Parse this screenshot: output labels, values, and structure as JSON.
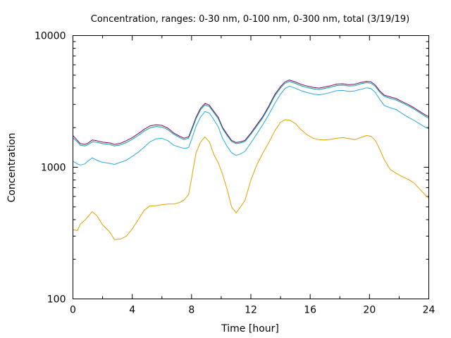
{
  "chart_data": {
    "type": "line",
    "title": "Concentration, ranges: 0-30 nm, 0-100 nm, 0-300 nm, total (3/19/19)",
    "xlabel": "Time [hour]",
    "ylabel": "Concentration",
    "xlim": [
      0,
      24
    ],
    "ylim": [
      100,
      10000
    ],
    "yscale": "log",
    "grid": false,
    "legend": "none",
    "x_ticks": [
      0,
      4,
      8,
      12,
      16,
      20,
      24
    ],
    "x_tick_labels": [
      "0",
      "4",
      "8",
      "12",
      "16",
      "20",
      "24"
    ],
    "y_ticks": [
      100,
      1000,
      10000
    ],
    "y_tick_labels": [
      "100",
      "1000",
      "10000"
    ],
    "x": [
      0,
      0.3,
      0.5,
      0.8,
      1.0,
      1.3,
      1.6,
      2.0,
      2.5,
      2.8,
      3.2,
      3.6,
      4.0,
      4.4,
      4.8,
      5.2,
      5.6,
      6.0,
      6.4,
      6.8,
      7.2,
      7.5,
      7.8,
      8.0,
      8.3,
      8.6,
      8.9,
      9.2,
      9.5,
      9.8,
      10.1,
      10.4,
      10.7,
      11.0,
      11.3,
      11.6,
      12.0,
      12.4,
      12.8,
      13.2,
      13.6,
      14.0,
      14.3,
      14.6,
      15.0,
      15.4,
      15.8,
      16.2,
      16.6,
      17.0,
      17.4,
      17.8,
      18.2,
      18.6,
      19.0,
      19.4,
      19.8,
      20.1,
      20.4,
      20.7,
      21.0,
      21.4,
      21.8,
      22.2,
      22.6,
      23.0,
      23.4,
      23.8,
      24.0
    ],
    "series": [
      {
        "color": "#800080",
        "values": [
          1740,
          1600,
          1510,
          1490,
          1520,
          1610,
          1590,
          1550,
          1530,
          1490,
          1520,
          1590,
          1680,
          1800,
          1940,
          2060,
          2100,
          2080,
          1980,
          1820,
          1720,
          1660,
          1700,
          1940,
          2390,
          2800,
          3050,
          2960,
          2660,
          2400,
          2000,
          1780,
          1600,
          1540,
          1560,
          1600,
          1820,
          2100,
          2420,
          2900,
          3550,
          4100,
          4450,
          4600,
          4440,
          4260,
          4130,
          4040,
          3990,
          4070,
          4160,
          4280,
          4300,
          4240,
          4270,
          4400,
          4490,
          4460,
          4200,
          3790,
          3530,
          3420,
          3320,
          3150,
          3000,
          2830,
          2650,
          2480,
          2420
        ]
      },
      {
        "color": "#00A880",
        "values": [
          1670,
          1560,
          1470,
          1450,
          1480,
          1560,
          1550,
          1510,
          1490,
          1450,
          1480,
          1540,
          1630,
          1740,
          1880,
          1990,
          2040,
          2020,
          1930,
          1780,
          1680,
          1620,
          1660,
          1890,
          2330,
          2730,
          2970,
          2890,
          2600,
          2340,
          1960,
          1740,
          1570,
          1510,
          1530,
          1570,
          1780,
          2050,
          2370,
          2830,
          3460,
          4000,
          4340,
          4490,
          4330,
          4150,
          4030,
          3940,
          3890,
          3970,
          4060,
          4170,
          4200,
          4140,
          4160,
          4300,
          4390,
          4350,
          4100,
          3700,
          3450,
          3340,
          3240,
          3080,
          2930,
          2770,
          2590,
          2420,
          2360
        ]
      },
      {
        "color": "#2AA7E0",
        "values": [
          1110,
          1060,
          1040,
          1060,
          1110,
          1180,
          1130,
          1090,
          1070,
          1050,
          1090,
          1130,
          1210,
          1300,
          1420,
          1560,
          1640,
          1660,
          1590,
          1470,
          1420,
          1390,
          1410,
          1620,
          2040,
          2400,
          2650,
          2580,
          2300,
          2030,
          1650,
          1440,
          1290,
          1230,
          1260,
          1320,
          1530,
          1790,
          2100,
          2500,
          3030,
          3600,
          3950,
          4130,
          3980,
          3810,
          3690,
          3600,
          3550,
          3610,
          3700,
          3820,
          3830,
          3760,
          3800,
          3910,
          4010,
          3960,
          3690,
          3270,
          2940,
          2830,
          2740,
          2560,
          2400,
          2270,
          2130,
          2000,
          1960
        ]
      },
      {
        "color": "#E0A000",
        "values": [
          335,
          330,
          370,
          395,
          420,
          460,
          430,
          365,
          320,
          282,
          285,
          300,
          340,
          400,
          470,
          510,
          510,
          520,
          525,
          525,
          540,
          565,
          620,
          820,
          1280,
          1550,
          1700,
          1560,
          1250,
          1080,
          880,
          680,
          500,
          450,
          500,
          560,
          800,
          1040,
          1280,
          1530,
          1880,
          2200,
          2300,
          2280,
          2150,
          1920,
          1760,
          1660,
          1620,
          1610,
          1630,
          1660,
          1680,
          1650,
          1620,
          1680,
          1740,
          1720,
          1590,
          1360,
          1140,
          960,
          900,
          850,
          810,
          760,
          680,
          610,
          580
        ]
      }
    ]
  }
}
